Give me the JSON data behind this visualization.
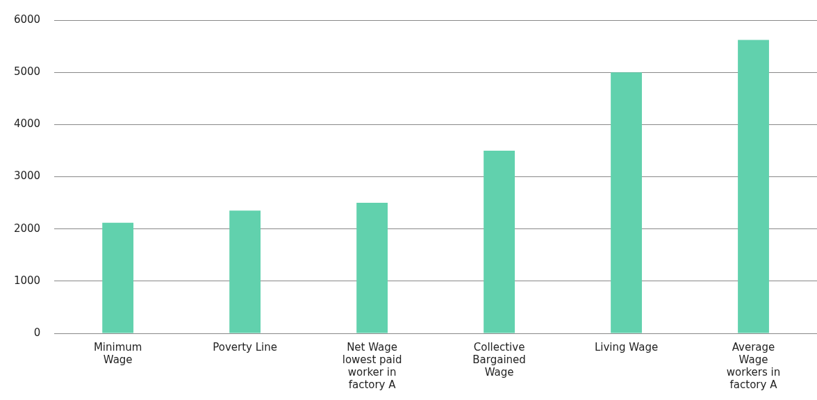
{
  "chart_data": {
    "type": "bar",
    "categories": [
      "Minimum\nWage",
      "Poverty Line",
      "Net Wage\nlowest paid\nworker in\nfactory A",
      "Collective\nBargained\nWage",
      "Living Wage",
      "Average\nWage\nworkers in\nfactory A"
    ],
    "values": [
      2120,
      2350,
      2500,
      3500,
      5000,
      5620
    ],
    "color": "#61d1ad",
    "ylim": [
      0,
      6000
    ],
    "yticks": [
      0,
      1000,
      2000,
      3000,
      4000,
      5000,
      6000
    ],
    "grid": "y",
    "legend": false
  }
}
